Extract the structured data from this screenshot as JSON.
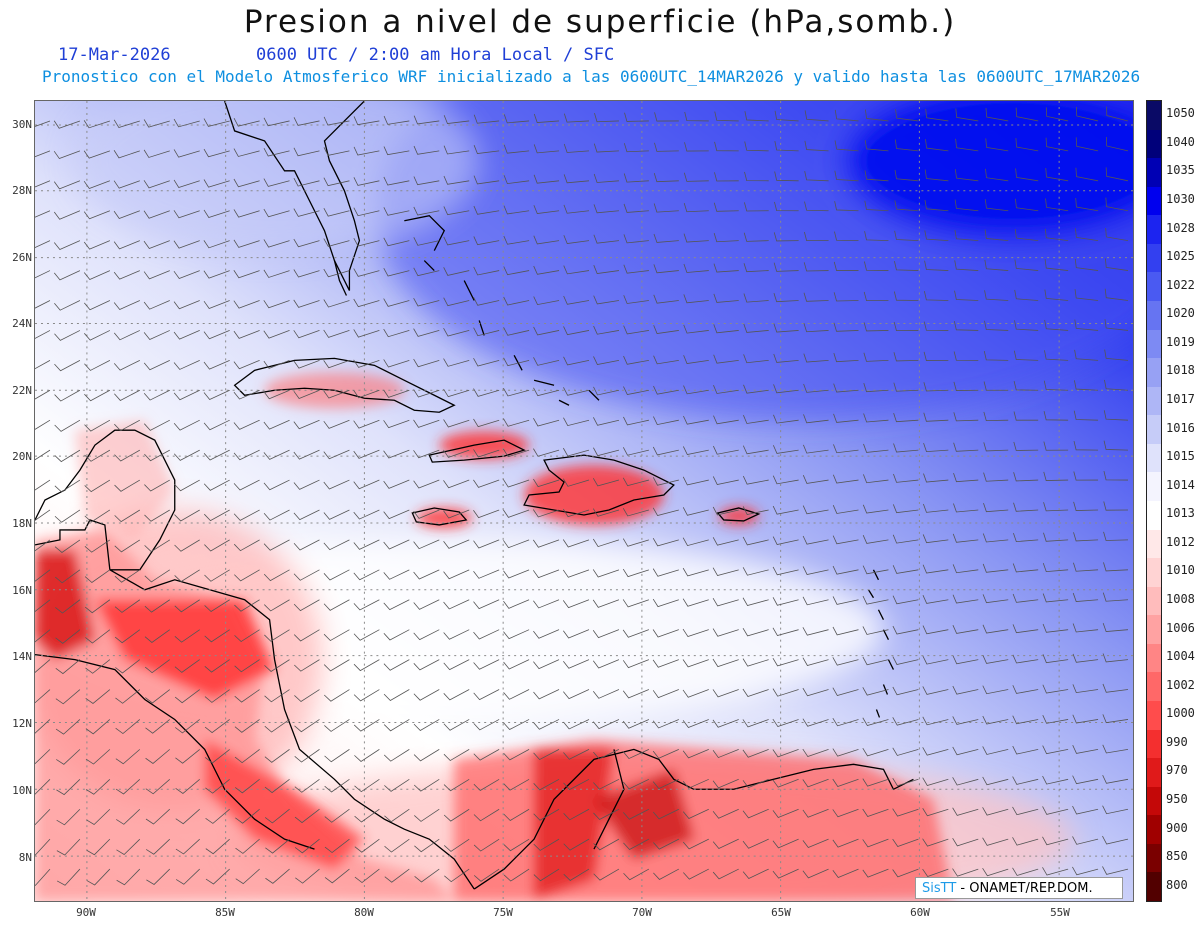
{
  "header": {
    "title": "Presion a nivel de superficie (hPa,somb.)",
    "date": "17-Mar-2026",
    "time": "0600 UTC / 2:00 am Hora Local / SFC",
    "forecast": "Pronostico con el Modelo Atmosferico WRF inicializado a las 0600UTC_14MAR2026 y valido hasta las  0600UTC_17MAR2026"
  },
  "map": {
    "lat_labels": [
      "30N",
      "28N",
      "26N",
      "24N",
      "22N",
      "20N",
      "18N",
      "16N",
      "14N",
      "12N",
      "10N",
      "8N"
    ],
    "lon_labels": [
      "90W",
      "85W",
      "80W",
      "75W",
      "70W",
      "65W",
      "60W",
      "55W"
    ],
    "lat_range": [
      7,
      30.7
    ],
    "lon_range": [
      -91.8,
      -52.3
    ]
  },
  "colorbar": {
    "levels": [
      "1050",
      "1040",
      "1035",
      "1030",
      "1028",
      "1025",
      "1022",
      "1020",
      "1019",
      "1018",
      "1017",
      "1016",
      "1015",
      "1014",
      "1013",
      "1012",
      "1010",
      "1008",
      "1006",
      "1004",
      "1002",
      "1000",
      "990",
      "970",
      "950",
      "900",
      "850",
      "800"
    ],
    "colors": [
      "#0a0a66",
      "#00007a",
      "#0000b4",
      "#0000ee",
      "#1c24f0",
      "#3340f0",
      "#4a5af2",
      "#6674f2",
      "#7d8af3",
      "#97a1f4",
      "#aeb6f6",
      "#c6ccf8",
      "#dfe2fb",
      "#f4f4fe",
      "#ffffff",
      "#ffe8e8",
      "#ffd3d3",
      "#ffbcbc",
      "#ffa2a2",
      "#ff8585",
      "#ff6868",
      "#ff4c4c",
      "#f42f2f",
      "#e01a1a",
      "#c40808",
      "#a00000",
      "#7a0000",
      "#520000"
    ]
  },
  "credit": {
    "brand": "SisTT",
    "text": " - ONAMET/REP.DOM."
  }
}
